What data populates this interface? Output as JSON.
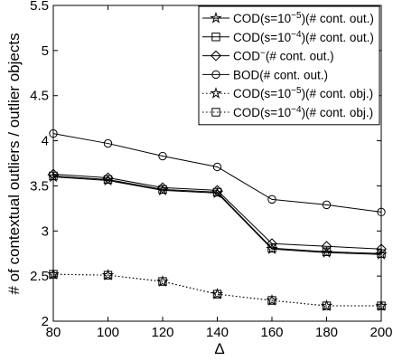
{
  "chart_data": {
    "type": "line",
    "xlabel": "Δ",
    "ylabel": "# of contextual outliers / outlier objects",
    "x": [
      80,
      100,
      120,
      140,
      160,
      180,
      200
    ],
    "xlim": [
      80,
      200
    ],
    "ylim": [
      2,
      5.5
    ],
    "xticks": [
      "80",
      "100",
      "120",
      "140",
      "160",
      "180",
      "200"
    ],
    "yticks": [
      "2",
      "2.5",
      "3",
      "3.5",
      "4",
      "4.5",
      "5",
      "5.5"
    ],
    "grid": false,
    "legend_position": "top-right",
    "series": [
      {
        "name_main": "COD(s=10",
        "name_exp": "−5",
        "name_tail": ")(# cont. out.)",
        "marker": "star",
        "line": "solid",
        "values": [
          3.6,
          3.56,
          3.45,
          3.42,
          2.8,
          2.76,
          2.74
        ]
      },
      {
        "name_main": "COD(s=10",
        "name_exp": "−4",
        "name_tail": ")(# cont. out.)",
        "marker": "square",
        "line": "solid",
        "values": [
          3.61,
          3.57,
          3.46,
          3.43,
          2.81,
          2.77,
          2.75
        ]
      },
      {
        "name_main": "COD",
        "name_exp": "−",
        "name_tail": "(# cont. out.)",
        "marker": "diamond",
        "line": "solid",
        "values": [
          3.63,
          3.59,
          3.48,
          3.45,
          2.86,
          2.83,
          2.8
        ]
      },
      {
        "name_main": "BOD(# cont. out.)",
        "name_exp": "",
        "name_tail": "",
        "marker": "circle",
        "line": "solid",
        "values": [
          4.08,
          3.97,
          3.83,
          3.71,
          3.35,
          3.29,
          3.21
        ]
      },
      {
        "name_main": "COD(s=10",
        "name_exp": "−5",
        "name_tail": ")(# cont. obj.)",
        "marker": "star",
        "line": "dotted",
        "values": [
          2.52,
          2.51,
          2.44,
          2.3,
          2.23,
          2.17,
          2.17
        ]
      },
      {
        "name_main": "COD(s=10",
        "name_exp": "−4",
        "name_tail": ")(# cont. obj.)",
        "marker": "square",
        "line": "dotted",
        "values": [
          2.52,
          2.51,
          2.44,
          2.3,
          2.23,
          2.17,
          2.17
        ]
      }
    ]
  }
}
